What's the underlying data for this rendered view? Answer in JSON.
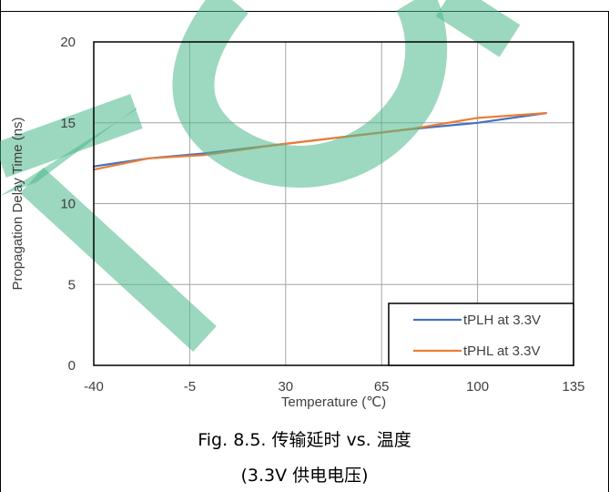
{
  "chart_data": {
    "type": "line",
    "xlabel": "Temperature (℃)",
    "ylabel": "Propagation Delay Time (ns)",
    "xlim": [
      -40,
      135
    ],
    "ylim": [
      0,
      20
    ],
    "xticks": [
      -40,
      -5,
      30,
      65,
      100,
      135
    ],
    "yticks": [
      0,
      5,
      10,
      15,
      20
    ],
    "grid": true,
    "legend_position": "bottom-right",
    "series": [
      {
        "name": "tPLH at 3.3V",
        "color": "#4472C4",
        "x": [
          -40,
          -20,
          0,
          25,
          50,
          75,
          100,
          125
        ],
        "y": [
          12.3,
          12.8,
          13.1,
          13.6,
          14.1,
          14.6,
          15.0,
          15.6
        ]
      },
      {
        "name": "tPHL at 3.3V",
        "color": "#ED7D31",
        "x": [
          -40,
          -20,
          0,
          25,
          50,
          75,
          100,
          125
        ],
        "y": [
          12.1,
          12.8,
          13.0,
          13.6,
          14.1,
          14.6,
          15.3,
          15.6
        ]
      }
    ]
  },
  "caption": {
    "line1": "Fig. 8.5. 传输延时 vs. 温度",
    "line2": "(3.3V 供电电压)"
  },
  "watermark": {
    "color": "#4CB88C"
  }
}
